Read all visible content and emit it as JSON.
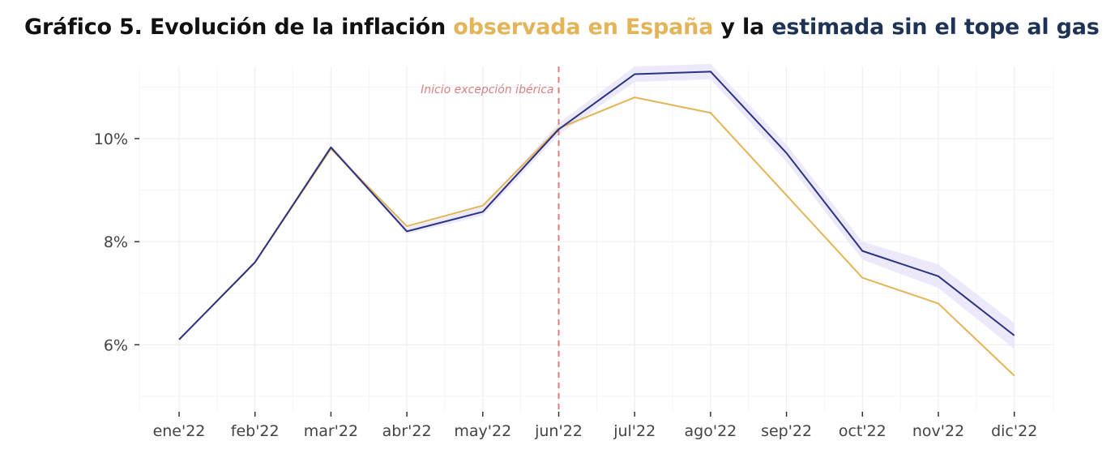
{
  "title": {
    "part1": "Gráfico 5. Evolución de la inflación ",
    "part2": "observada en España",
    "part3": " y la ",
    "part4": "estimada sin el tope al gas"
  },
  "colors": {
    "observed": "#e3b458",
    "estimated": "#2b3280",
    "band": "#ece9fb",
    "event": "#d9807f",
    "title_text": "#111111",
    "title_estimated": "#1f3357",
    "grid": "#efefef"
  },
  "chart_data": {
    "type": "line",
    "title": "Gráfico 5. Evolución de la inflación observada en España y la estimada sin el tope al gas",
    "xlabel": "",
    "ylabel": "",
    "categories": [
      "ene'22",
      "feb'22",
      "mar'22",
      "abr'22",
      "may'22",
      "jun'22",
      "jul'22",
      "ago'22",
      "sep'22",
      "oct'22",
      "nov'22",
      "dic'22"
    ],
    "highlight_category": "jun'22",
    "ylim": [
      4.7,
      11.4
    ],
    "y_ticks": [
      6,
      8,
      10
    ],
    "y_tick_labels": [
      "6%",
      "8%",
      "10%"
    ],
    "series": [
      {
        "name": "observada en España",
        "values": [
          6.1,
          7.6,
          9.8,
          8.3,
          8.7,
          10.2,
          10.8,
          10.5,
          8.9,
          7.3,
          6.8,
          5.4
        ]
      },
      {
        "name": "estimada sin el tope al gas",
        "values": [
          6.1,
          7.6,
          9.83,
          8.2,
          8.58,
          10.18,
          11.25,
          11.3,
          9.72,
          7.82,
          7.33,
          6.18
        ],
        "band_lower": [
          6.1,
          7.6,
          9.8,
          8.15,
          8.5,
          10.08,
          11.1,
          11.15,
          9.55,
          7.65,
          7.1,
          5.92
        ],
        "band_upper": [
          6.1,
          7.6,
          9.87,
          8.27,
          8.68,
          10.3,
          11.4,
          11.45,
          9.88,
          8.0,
          7.56,
          6.42
        ]
      }
    ],
    "annotations": [
      {
        "text": "Inicio excepción ibérica",
        "x": "jun'22"
      }
    ],
    "grid": true,
    "legend": "none"
  }
}
